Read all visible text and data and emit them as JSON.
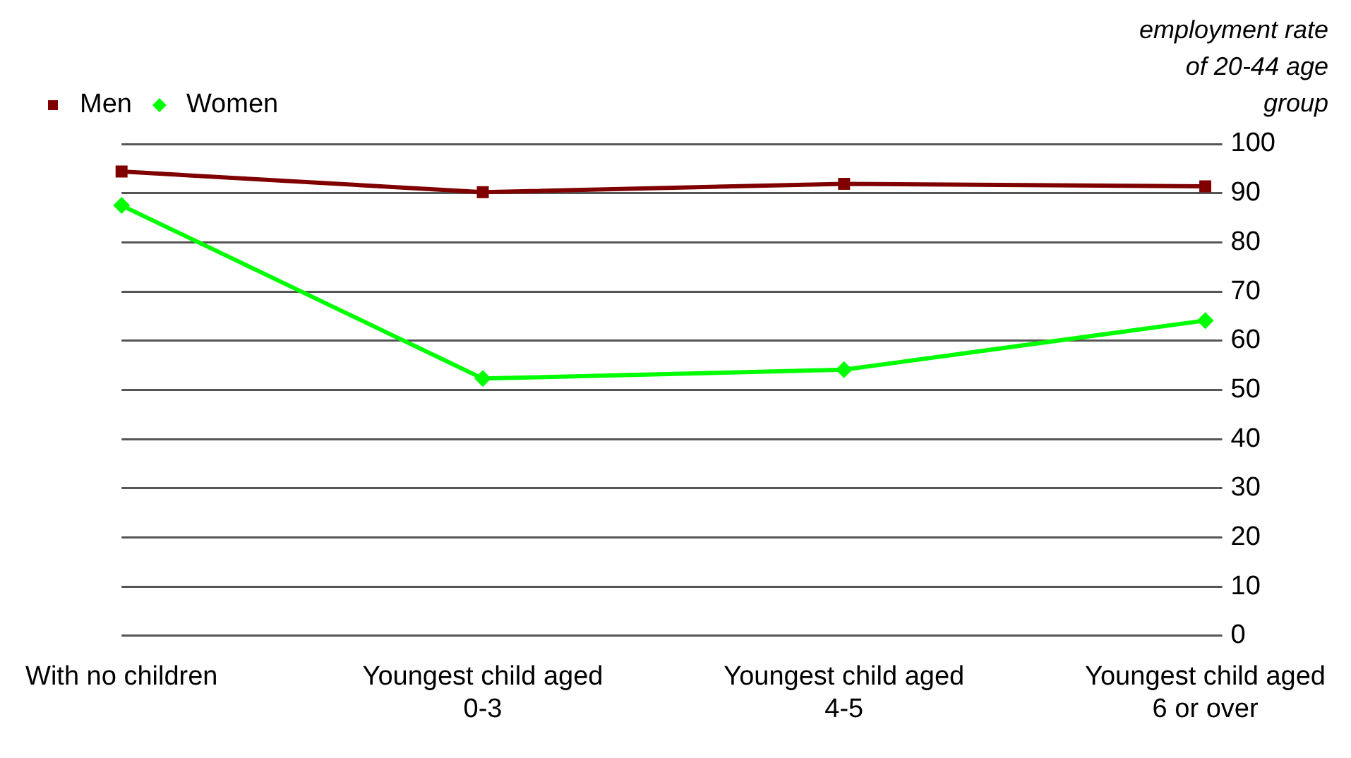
{
  "chart_data": {
    "type": "line",
    "ylabel": "employment rate of 20-44 age group",
    "categories": [
      "With no children",
      "Youngest child aged 0-3",
      "Youngest child aged 4-5",
      "Youngest child aged 6 or over"
    ],
    "series": [
      {
        "name": "Men",
        "color": "#800000",
        "values": [
          94.4,
          90.2,
          91.9,
          91.4
        ],
        "marker": "square"
      },
      {
        "name": "Women",
        "color": "#00ff00",
        "values": [
          87.5,
          52.3,
          54.1,
          64.1
        ],
        "marker": "diamond"
      }
    ],
    "ylim": [
      0,
      100
    ],
    "yticks": [
      0,
      10,
      20,
      30,
      40,
      50,
      60,
      70,
      80,
      90,
      100
    ],
    "grid": "y",
    "legend": "top left",
    "line_style": "solid"
  }
}
